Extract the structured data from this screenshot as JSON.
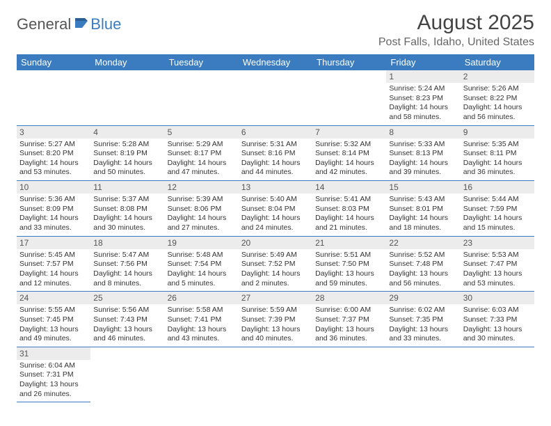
{
  "brand": {
    "part1": "General",
    "part2": "Blue"
  },
  "title": "August 2025",
  "location": "Post Falls, Idaho, United States",
  "colors": {
    "header_bg": "#3a7cbf",
    "daynum_bg": "#ececec",
    "rule": "#3a7cbf",
    "text": "#333333"
  },
  "dow": [
    "Sunday",
    "Monday",
    "Tuesday",
    "Wednesday",
    "Thursday",
    "Friday",
    "Saturday"
  ],
  "blanks_before": 5,
  "days": [
    {
      "n": 1,
      "sr": "5:24 AM",
      "ss": "8:23 PM",
      "dl": "14 hours and 58 minutes."
    },
    {
      "n": 2,
      "sr": "5:26 AM",
      "ss": "8:22 PM",
      "dl": "14 hours and 56 minutes."
    },
    {
      "n": 3,
      "sr": "5:27 AM",
      "ss": "8:20 PM",
      "dl": "14 hours and 53 minutes."
    },
    {
      "n": 4,
      "sr": "5:28 AM",
      "ss": "8:19 PM",
      "dl": "14 hours and 50 minutes."
    },
    {
      "n": 5,
      "sr": "5:29 AM",
      "ss": "8:17 PM",
      "dl": "14 hours and 47 minutes."
    },
    {
      "n": 6,
      "sr": "5:31 AM",
      "ss": "8:16 PM",
      "dl": "14 hours and 44 minutes."
    },
    {
      "n": 7,
      "sr": "5:32 AM",
      "ss": "8:14 PM",
      "dl": "14 hours and 42 minutes."
    },
    {
      "n": 8,
      "sr": "5:33 AM",
      "ss": "8:13 PM",
      "dl": "14 hours and 39 minutes."
    },
    {
      "n": 9,
      "sr": "5:35 AM",
      "ss": "8:11 PM",
      "dl": "14 hours and 36 minutes."
    },
    {
      "n": 10,
      "sr": "5:36 AM",
      "ss": "8:09 PM",
      "dl": "14 hours and 33 minutes."
    },
    {
      "n": 11,
      "sr": "5:37 AM",
      "ss": "8:08 PM",
      "dl": "14 hours and 30 minutes."
    },
    {
      "n": 12,
      "sr": "5:39 AM",
      "ss": "8:06 PM",
      "dl": "14 hours and 27 minutes."
    },
    {
      "n": 13,
      "sr": "5:40 AM",
      "ss": "8:04 PM",
      "dl": "14 hours and 24 minutes."
    },
    {
      "n": 14,
      "sr": "5:41 AM",
      "ss": "8:03 PM",
      "dl": "14 hours and 21 minutes."
    },
    {
      "n": 15,
      "sr": "5:43 AM",
      "ss": "8:01 PM",
      "dl": "14 hours and 18 minutes."
    },
    {
      "n": 16,
      "sr": "5:44 AM",
      "ss": "7:59 PM",
      "dl": "14 hours and 15 minutes."
    },
    {
      "n": 17,
      "sr": "5:45 AM",
      "ss": "7:57 PM",
      "dl": "14 hours and 12 minutes."
    },
    {
      "n": 18,
      "sr": "5:47 AM",
      "ss": "7:56 PM",
      "dl": "14 hours and 8 minutes."
    },
    {
      "n": 19,
      "sr": "5:48 AM",
      "ss": "7:54 PM",
      "dl": "14 hours and 5 minutes."
    },
    {
      "n": 20,
      "sr": "5:49 AM",
      "ss": "7:52 PM",
      "dl": "14 hours and 2 minutes."
    },
    {
      "n": 21,
      "sr": "5:51 AM",
      "ss": "7:50 PM",
      "dl": "13 hours and 59 minutes."
    },
    {
      "n": 22,
      "sr": "5:52 AM",
      "ss": "7:48 PM",
      "dl": "13 hours and 56 minutes."
    },
    {
      "n": 23,
      "sr": "5:53 AM",
      "ss": "7:47 PM",
      "dl": "13 hours and 53 minutes."
    },
    {
      "n": 24,
      "sr": "5:55 AM",
      "ss": "7:45 PM",
      "dl": "13 hours and 49 minutes."
    },
    {
      "n": 25,
      "sr": "5:56 AM",
      "ss": "7:43 PM",
      "dl": "13 hours and 46 minutes."
    },
    {
      "n": 26,
      "sr": "5:58 AM",
      "ss": "7:41 PM",
      "dl": "13 hours and 43 minutes."
    },
    {
      "n": 27,
      "sr": "5:59 AM",
      "ss": "7:39 PM",
      "dl": "13 hours and 40 minutes."
    },
    {
      "n": 28,
      "sr": "6:00 AM",
      "ss": "7:37 PM",
      "dl": "13 hours and 36 minutes."
    },
    {
      "n": 29,
      "sr": "6:02 AM",
      "ss": "7:35 PM",
      "dl": "13 hours and 33 minutes."
    },
    {
      "n": 30,
      "sr": "6:03 AM",
      "ss": "7:33 PM",
      "dl": "13 hours and 30 minutes."
    },
    {
      "n": 31,
      "sr": "6:04 AM",
      "ss": "7:31 PM",
      "dl": "13 hours and 26 minutes."
    }
  ]
}
